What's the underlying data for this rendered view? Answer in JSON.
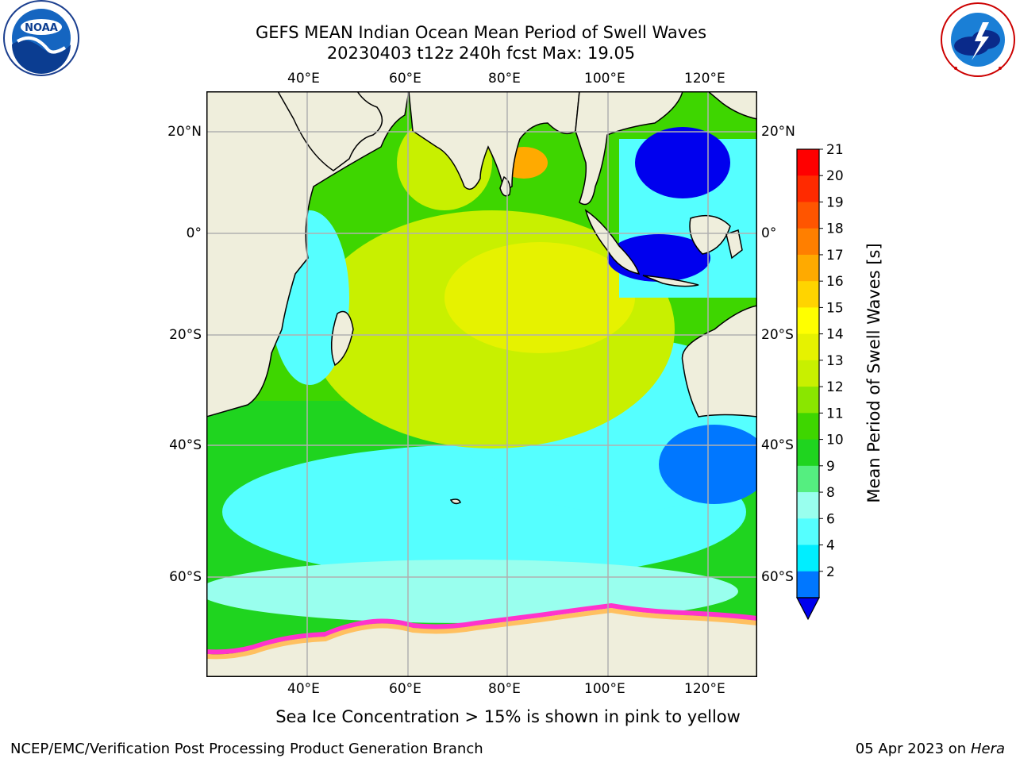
{
  "header": {
    "title_line1": "GEFS MEAN Indian Ocean Mean Period of Swell Waves",
    "title_line2": "20230403 t12z 240h fcst   Max: 19.05"
  },
  "logos": {
    "left": {
      "name": "noaa-logo",
      "text": "NOAA"
    },
    "right": {
      "name": "nws-logo"
    }
  },
  "map": {
    "lon_labels": [
      "40°E",
      "60°E",
      "80°E",
      "100°E",
      "120°E"
    ],
    "lat_labels": [
      "20°N",
      "0°",
      "20°S",
      "40°S",
      "60°S"
    ],
    "colors": {
      "land": "#efeedc",
      "frame": "#000000",
      "grid": "#b0b0b0"
    }
  },
  "colorbar": {
    "label": "Mean Period of Swell Waves [s]",
    "ticks": [
      "21",
      "20",
      "19",
      "18",
      "17",
      "16",
      "15",
      "14",
      "13",
      "12",
      "11",
      "10",
      "9",
      "8",
      "6",
      "4",
      "2"
    ],
    "colors": [
      "#ff0000",
      "#ff2a00",
      "#ff5500",
      "#ff7f00",
      "#ffaa00",
      "#ffd400",
      "#ffff00",
      "#e6f200",
      "#c8f000",
      "#8ae600",
      "#3ed600",
      "#1fd41f",
      "#55ee80",
      "#99ffee",
      "#55ffff",
      "#00eeff",
      "#0077ff"
    ],
    "under_color": "#0000ee"
  },
  "footer": {
    "note": "Sea Ice Concentration > 15% is shown in pink to yellow",
    "left": "NCEP/EMC/Verification Post Processing Product Generation Branch",
    "right_prefix": "05 Apr 2023 on ",
    "right_host": "Hera"
  }
}
